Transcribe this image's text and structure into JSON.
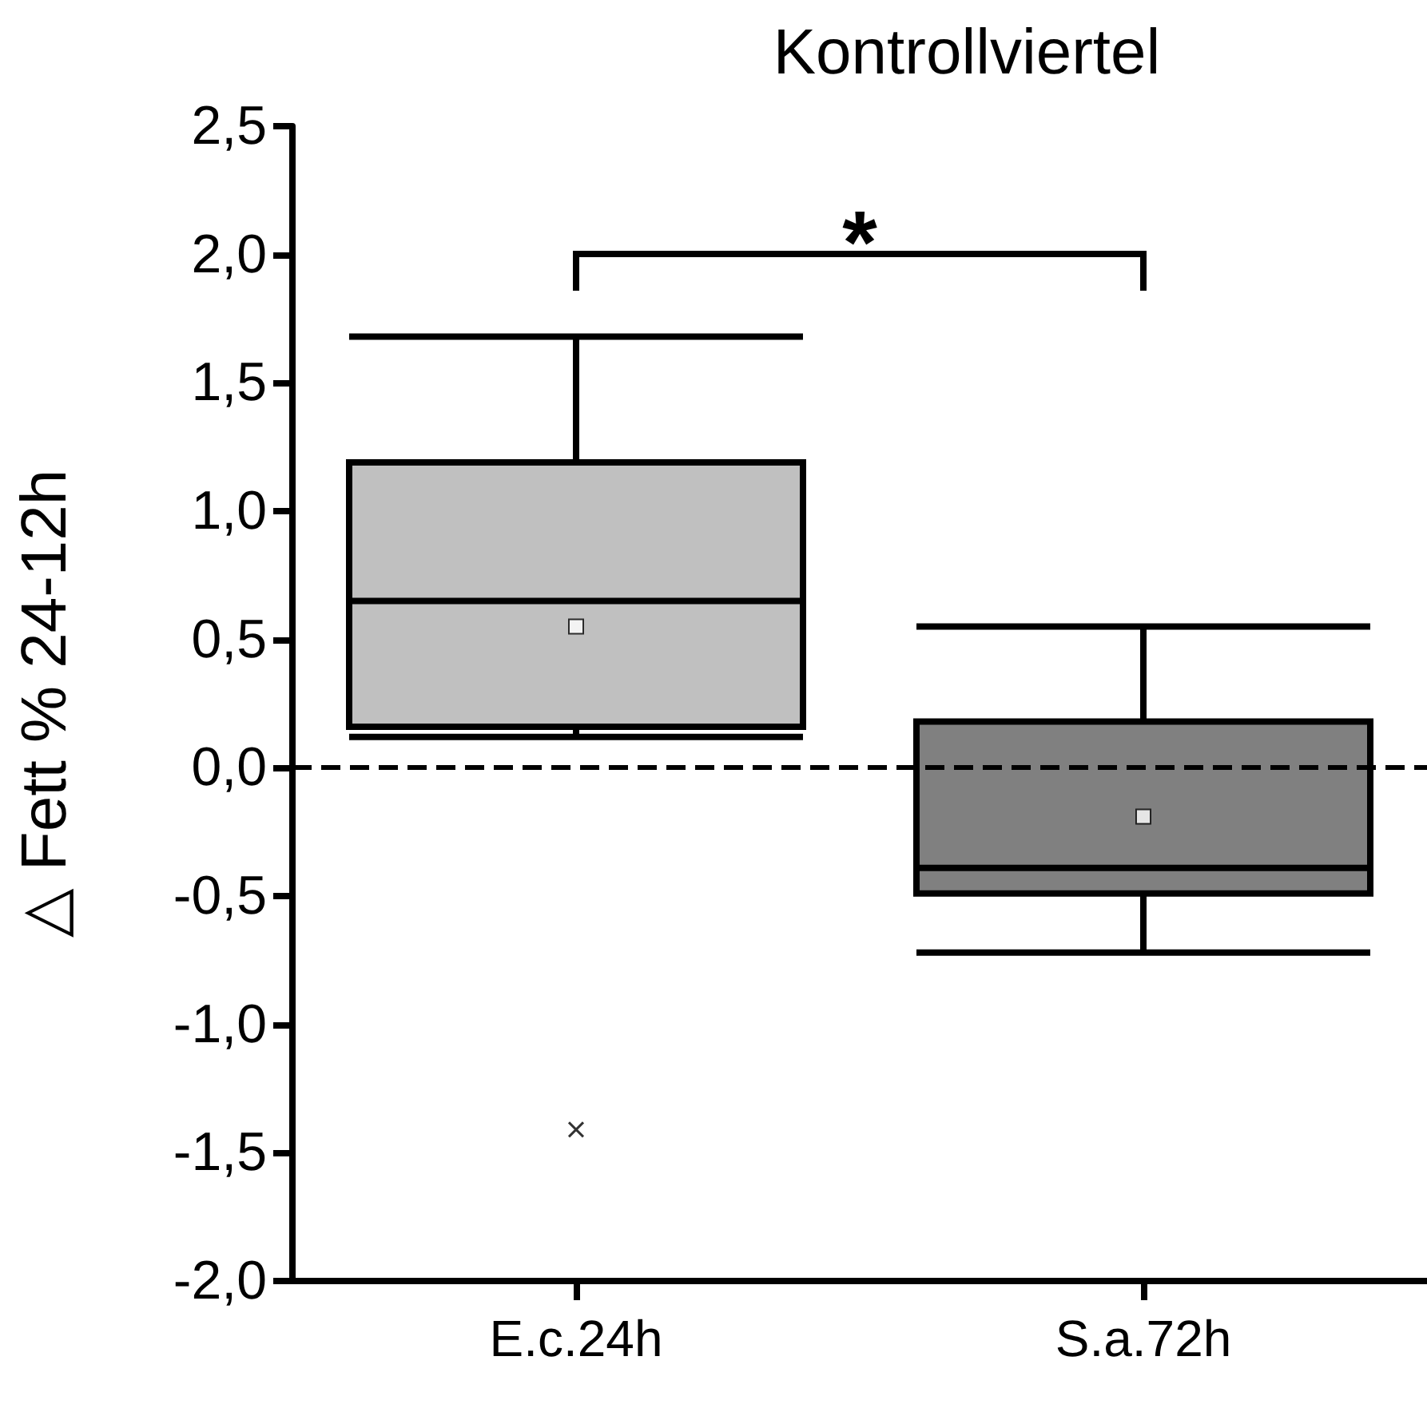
{
  "chart_data": {
    "type": "box",
    "title": "Kontrollviertel",
    "ylabel": "△ Fett % 24-12h",
    "categories": [
      "E.c.24h",
      "S.a.72h"
    ],
    "colors": [
      "#c0c0c0",
      "#808080"
    ],
    "boxes": [
      {
        "low": 0.12,
        "q1": 0.16,
        "median": 0.65,
        "q3": 1.19,
        "high": 1.68,
        "mean": 0.55,
        "outliers": [
          -1.41
        ]
      },
      {
        "low": -0.72,
        "q1": -0.49,
        "median": -0.39,
        "q3": 0.18,
        "high": 0.55,
        "mean": -0.19
      }
    ],
    "ylim": [
      -2.0,
      2.5
    ],
    "yticks": [
      {
        "value": -2.0,
        "label": "-2,0"
      },
      {
        "value": -1.5,
        "label": "-1,5"
      },
      {
        "value": -1.0,
        "label": "-1,0"
      },
      {
        "value": -0.5,
        "label": "-0,5"
      },
      {
        "value": 0,
        "label": "0,0"
      },
      {
        "value": 0.5,
        "label": "0,5"
      },
      {
        "value": 1.0,
        "label": "1,0"
      },
      {
        "value": 1.5,
        "label": "1,5"
      },
      {
        "value": 2.0,
        "label": "2,0"
      },
      {
        "value": 2.5,
        "label": "2,5"
      }
    ],
    "ref_lines": [
      {
        "axis": "y",
        "value": 0,
        "line_style": "dashed",
        "color": "#000000"
      }
    ],
    "annotations": [
      "*"
    ],
    "grid": false
  }
}
